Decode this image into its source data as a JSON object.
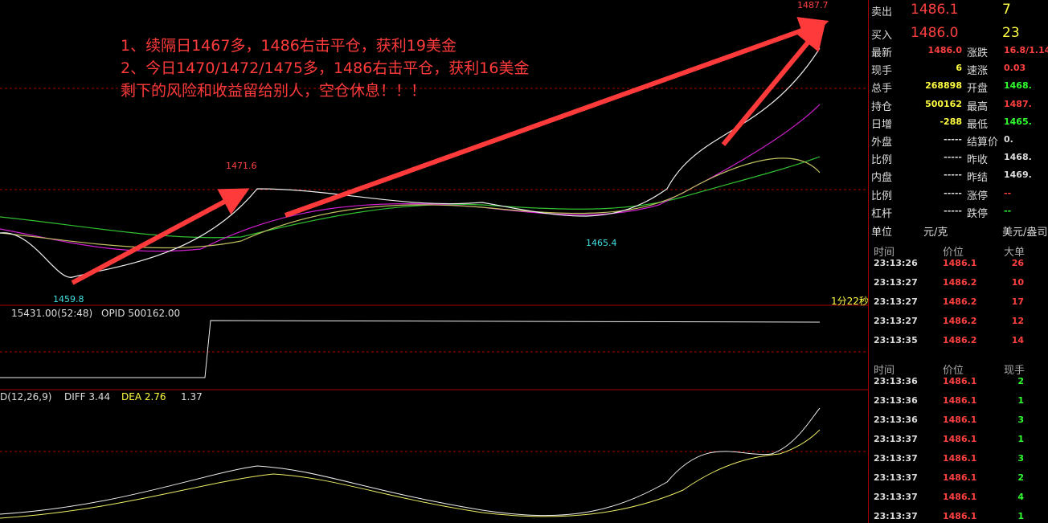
{
  "annotations": [
    "1、续隔日1467多，1486右击平仓，获利19美金",
    "2、今日1470/1472/1475多，1486右击平仓，获利16美金",
    "剩下的风险和收益留给别人，空仓休息！！！"
  ],
  "price_labels": {
    "high": "1487.7",
    "peak": "1471.6",
    "dip": "1465.4",
    "low": "1459.8"
  },
  "timer": "1分22秒",
  "volume_panel": {
    "vol": "15431.00(52:48)",
    "opid": "OPID 500162.00"
  },
  "macd_panel": {
    "name": "D(12,26,9)",
    "diff": "DIFF 3.44",
    "dea": "DEA 2.76",
    "macd": "1.37"
  },
  "quote": {
    "sell": {
      "label": "卖出",
      "price": "1486.1",
      "qty": "7"
    },
    "buy": {
      "label": "买入",
      "price": "1486.0",
      "qty": "23"
    }
  },
  "stats": [
    [
      [
        "最新",
        "1486.0"
      ],
      [
        "涨跌",
        "16.8/1.14"
      ]
    ],
    [
      [
        "现手",
        "6"
      ],
      [
        "速涨",
        "0.03"
      ]
    ],
    [
      [
        "总手",
        "268898"
      ],
      [
        "开盘",
        "1468."
      ]
    ],
    [
      [
        "持仓",
        "500162"
      ],
      [
        "最高",
        "1487."
      ]
    ],
    [
      [
        "日增",
        "-288"
      ],
      [
        "最低",
        "1465."
      ]
    ],
    [
      [
        "外盘",
        "-----"
      ],
      [
        "结算价",
        "0."
      ]
    ],
    [
      [
        "比例",
        "-----"
      ],
      [
        "昨收",
        "1468."
      ]
    ],
    [
      [
        "内盘",
        "-----"
      ],
      [
        "昨结",
        "1469."
      ]
    ],
    [
      [
        "比例",
        "-----"
      ],
      [
        "涨停",
        "--"
      ]
    ],
    [
      [
        "杠杆",
        "-----"
      ],
      [
        "跌停",
        "--"
      ]
    ]
  ],
  "unit": {
    "label": "单位",
    "value": "元/克",
    "alt": "美元/盎司"
  },
  "big_orders": {
    "header": [
      "时间",
      "价位",
      "大单"
    ],
    "rows": [
      [
        "23:13:26",
        "1486.1",
        "26"
      ],
      [
        "23:13:27",
        "1486.2",
        "10"
      ],
      [
        "23:13:27",
        "1486.2",
        "17"
      ],
      [
        "23:13:27",
        "1486.2",
        "12"
      ],
      [
        "23:13:35",
        "1486.2",
        "14"
      ]
    ]
  },
  "ticks": {
    "header": [
      "时间",
      "价位",
      "现手"
    ],
    "rows": [
      [
        "23:13:36",
        "1486.1",
        "2"
      ],
      [
        "23:13:36",
        "1486.1",
        "1"
      ],
      [
        "23:13:36",
        "1486.1",
        "3"
      ],
      [
        "23:13:37",
        "1486.1",
        "1"
      ],
      [
        "23:13:37",
        "1486.1",
        "3"
      ],
      [
        "23:13:37",
        "1486.1",
        "2"
      ],
      [
        "23:13:37",
        "1486.1",
        "4"
      ],
      [
        "23:13:37",
        "1486.1",
        "1"
      ]
    ]
  }
}
